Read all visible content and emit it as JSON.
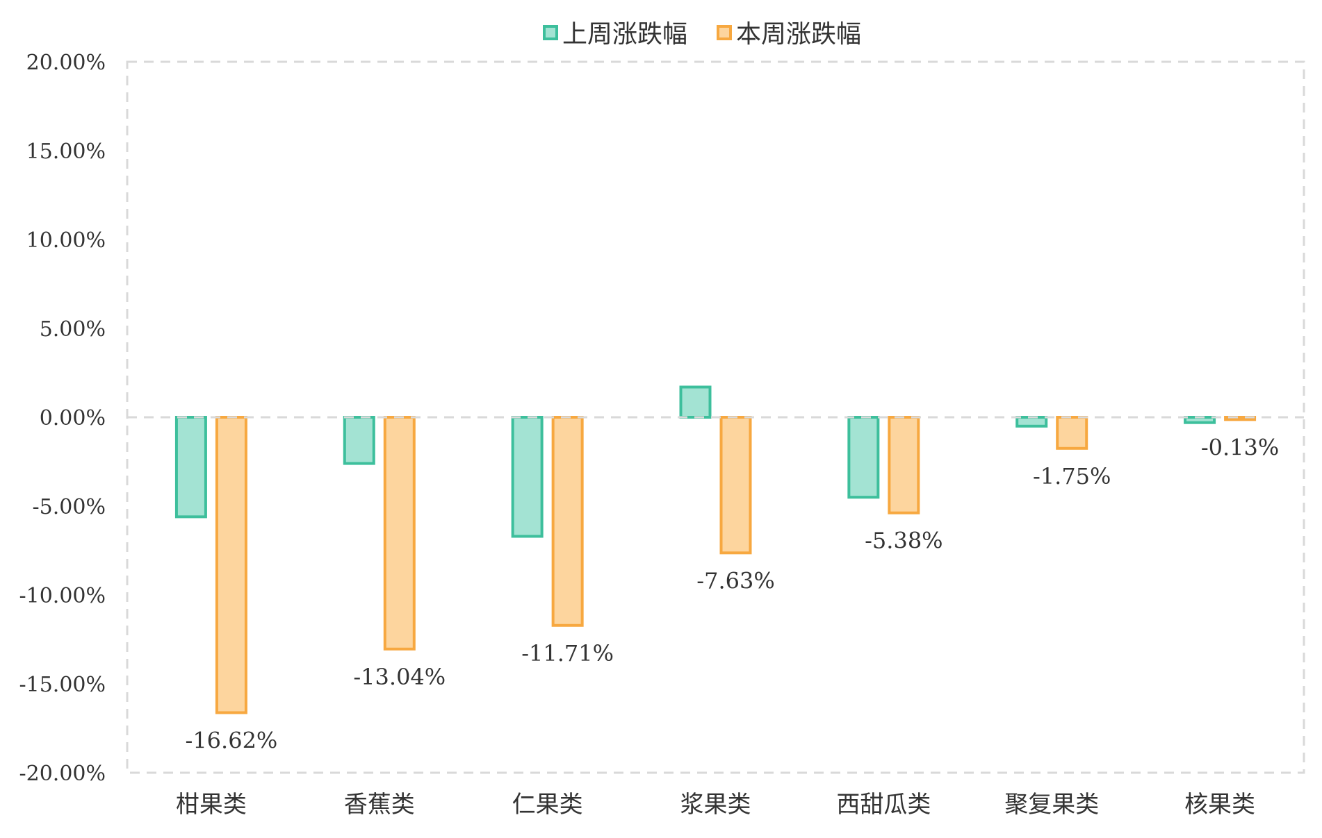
{
  "chart_data": {
    "type": "bar",
    "title": "",
    "xlabel": "",
    "ylabel": "",
    "categories": [
      "柑果类",
      "香蕉类",
      "仁果类",
      "浆果类",
      "西甜瓜类",
      "聚复果类",
      "核果类"
    ],
    "series": [
      {
        "name": "上周涨跌幅",
        "values": [
          -5.6,
          -2.6,
          -6.7,
          1.7,
          -4.5,
          -0.5,
          -0.3
        ],
        "color": "#3dbf9c",
        "fill": "#a3e3d3"
      },
      {
        "name": "本周涨跌幅",
        "values": [
          -16.62,
          -13.04,
          -11.71,
          -7.63,
          -5.38,
          -1.75,
          -0.13
        ],
        "data_labels": [
          "-16.62%",
          "-13.04%",
          "-11.71%",
          "-7.63%",
          "-5.38%",
          "-1.75%",
          "-0.13%"
        ],
        "color": "#f7a840",
        "fill": "#fdd59e"
      }
    ],
    "ylim": [
      -20,
      20
    ],
    "yticks": [
      20,
      15,
      10,
      5,
      0,
      -5,
      -10,
      -15,
      -20
    ],
    "ytick_labels": [
      "20.00%",
      "15.00%",
      "10.00%",
      "5.00%",
      "0.00%",
      "-5.00%",
      "-10.00%",
      "-15.00%",
      "-20.00%"
    ],
    "legend_position": "top-center",
    "grid": "dashed plot-area border and zero line",
    "grid_color": "#d9d9d9"
  }
}
